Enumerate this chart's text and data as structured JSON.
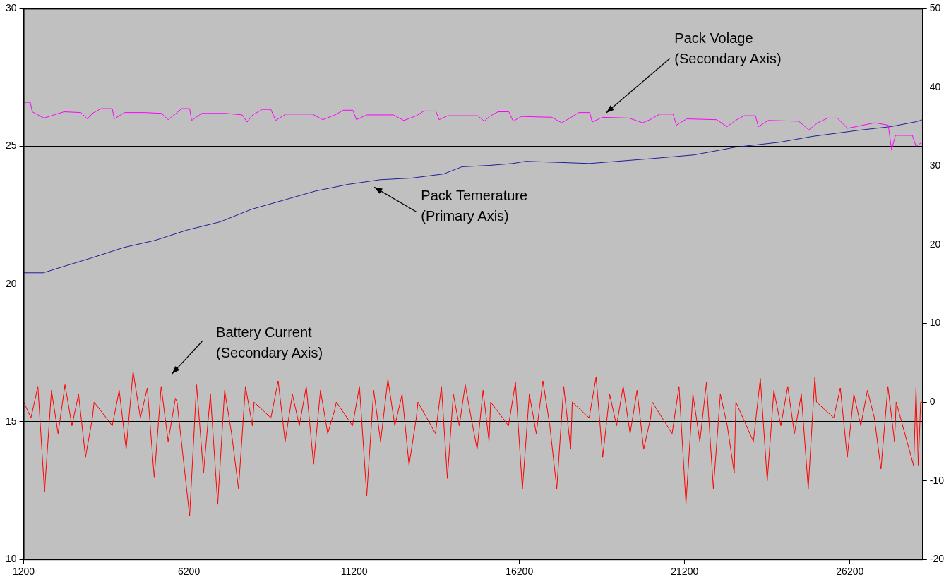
{
  "chart_data": {
    "type": "line",
    "xlim": [
      1200,
      28400
    ],
    "xticks": [
      1200,
      6200,
      11200,
      16200,
      21200,
      26200
    ],
    "ylim": [
      10,
      30
    ],
    "yticks": [
      10,
      15,
      20,
      25,
      30
    ],
    "y2lim": [
      -20,
      50
    ],
    "y2ticks": [
      -20,
      -10,
      0,
      10,
      20,
      30,
      40,
      50
    ],
    "grid": "y",
    "legend": false,
    "marker": "none",
    "series": [
      {
        "color": "#ff00ff",
        "axis": "y2",
        "x": [
          1200,
          1400,
          1460,
          1810,
          2420,
          2930,
          3130,
          3280,
          3540,
          3880,
          3940,
          4250,
          4860,
          5370,
          5570,
          5780,
          5980,
          6220,
          6280,
          6590,
          7300,
          7810,
          7960,
          8130,
          8420,
          8680,
          8820,
          9130,
          9940,
          10250,
          10620,
          10870,
          11160,
          11270,
          11580,
          12390,
          12700,
          13090,
          13310,
          13670,
          13770,
          14030,
          14940,
          15140,
          15290,
          15550,
          15880,
          16010,
          16260,
          17180,
          17480,
          17770,
          17990,
          18330,
          18400,
          18710,
          19520,
          19930,
          20200,
          20440,
          20850,
          20950,
          21260,
          22170,
          22480,
          22740,
          23000,
          23340,
          23430,
          23730,
          24650,
          24960,
          25220,
          25530,
          25820,
          26130,
          26950,
          27360,
          27460,
          27580,
          28090,
          28200,
          28370,
          28400
        ],
        "values": [
          38.1,
          38.1,
          36.9,
          36.1,
          36.9,
          36.8,
          36.0,
          36.7,
          37.3,
          37.3,
          36.0,
          36.8,
          36.8,
          36.7,
          35.9,
          36.6,
          37.3,
          37.3,
          35.8,
          36.7,
          36.7,
          36.5,
          35.6,
          36.5,
          37.2,
          37.2,
          35.8,
          36.6,
          36.6,
          35.9,
          36.5,
          37.1,
          37.1,
          35.9,
          36.5,
          36.5,
          35.8,
          36.4,
          37.0,
          37.0,
          35.9,
          36.4,
          36.4,
          35.7,
          36.3,
          36.9,
          36.9,
          35.7,
          36.3,
          36.2,
          35.5,
          36.2,
          36.8,
          36.8,
          35.6,
          36.2,
          36.1,
          35.5,
          36.0,
          36.6,
          36.6,
          35.2,
          36.0,
          35.9,
          35.0,
          35.8,
          36.4,
          36.4,
          35.0,
          35.8,
          35.7,
          34.6,
          35.5,
          36.1,
          36.1,
          34.8,
          35.5,
          35.2,
          32.1,
          33.9,
          33.9,
          32.5,
          33.0,
          33.1
        ]
      },
      {
        "color": "#1f1f99",
        "x": [
          1200,
          1790,
          2270,
          3250,
          4230,
          5180,
          6160,
          7140,
          8100,
          9070,
          10030,
          11010,
          11980,
          12940,
          13910,
          14460,
          15290,
          16000,
          16390,
          18320,
          20240,
          21480,
          22730,
          24070,
          25050,
          26490,
          27450,
          28220,
          28400
        ],
        "values": [
          20.41,
          20.41,
          20.59,
          20.95,
          21.33,
          21.59,
          21.97,
          22.26,
          22.72,
          23.05,
          23.38,
          23.62,
          23.79,
          23.85,
          24.0,
          24.26,
          24.31,
          24.38,
          24.46,
          24.38,
          24.56,
          24.69,
          24.97,
          25.15,
          25.36,
          25.59,
          25.72,
          25.9,
          25.97
        ]
      },
      {
        "color": "#ff0000",
        "axis": "y2",
        "x": [
          1200,
          1420,
          1630,
          1830,
          2040,
          2240,
          2450,
          2660,
          2860,
          3070,
          3280,
          3330,
          3880,
          4090,
          4300,
          4510,
          4730,
          4940,
          5150,
          5360,
          5570,
          5790,
          5840,
          6220,
          6430,
          6640,
          6850,
          7070,
          7280,
          7490,
          7700,
          7910,
          8120,
          8170,
          8680,
          8900,
          9110,
          9330,
          9540,
          9750,
          9970,
          10180,
          10400,
          10610,
          10660,
          11150,
          11360,
          11580,
          11790,
          12000,
          12220,
          12430,
          12650,
          12860,
          13080,
          13130,
          13660,
          13840,
          14020,
          14200,
          14380,
          14560,
          14740,
          14920,
          15100,
          15280,
          15330,
          15870,
          16080,
          16290,
          16500,
          16710,
          16910,
          17120,
          17330,
          17540,
          17750,
          17800,
          18310,
          18520,
          18720,
          18930,
          19140,
          19340,
          19550,
          19760,
          19960,
          20170,
          20220,
          20820,
          21030,
          21240,
          21450,
          21660,
          21860,
          22070,
          22280,
          22490,
          22700,
          22750,
          23280,
          23490,
          23700,
          23900,
          24110,
          24320,
          24520,
          24730,
          24940,
          25140,
          25190,
          25710,
          25910,
          26120,
          26320,
          26530,
          26730,
          26940,
          27140,
          27350,
          27550,
          27600,
          28130,
          28200,
          28270,
          28340,
          28400
        ],
        "values": [
          0,
          -2,
          2,
          -11.4,
          1.5,
          -4,
          2.2,
          -3,
          1,
          -7,
          -2,
          0,
          -3,
          1.5,
          -6,
          3.9,
          -2,
          1.8,
          -9.6,
          2,
          -5,
          0.5,
          0,
          -14.5,
          2.2,
          -9,
          1,
          -13,
          1.5,
          -4,
          -11,
          2,
          -3,
          0,
          -2,
          2.7,
          -5,
          1,
          -3,
          2,
          -7.9,
          1.5,
          -4,
          -1,
          0,
          -3,
          2,
          -11.9,
          1.5,
          -5,
          2.9,
          -3,
          1,
          -8,
          -2,
          0,
          -4,
          2,
          -9.7,
          1,
          -3,
          2.2,
          -2,
          -6,
          1.5,
          -5,
          0,
          -3,
          2.5,
          -11.1,
          1,
          -4,
          2.7,
          -3,
          -11,
          2,
          -6,
          0,
          -2,
          3.2,
          -7,
          1,
          -3,
          2,
          -4,
          1.5,
          -6,
          -2,
          0,
          -4,
          2,
          -12.9,
          1,
          -5,
          2.5,
          -11,
          1,
          -3,
          -9,
          0,
          -5,
          3,
          -10,
          1.5,
          -3,
          2,
          -4,
          1,
          -11,
          3.2,
          0,
          -2,
          1.8,
          -7,
          1,
          -3,
          1.5,
          -2,
          -8.5,
          2,
          -5,
          0,
          -8.1,
          1.8,
          -8,
          0,
          0
        ]
      }
    ],
    "annotations": [
      "Pack Volage\n(Secondary Axis)",
      "Pack Temerature\n(Primary Axis)",
      "Battery Current\n(Secondary Axis)"
    ]
  }
}
